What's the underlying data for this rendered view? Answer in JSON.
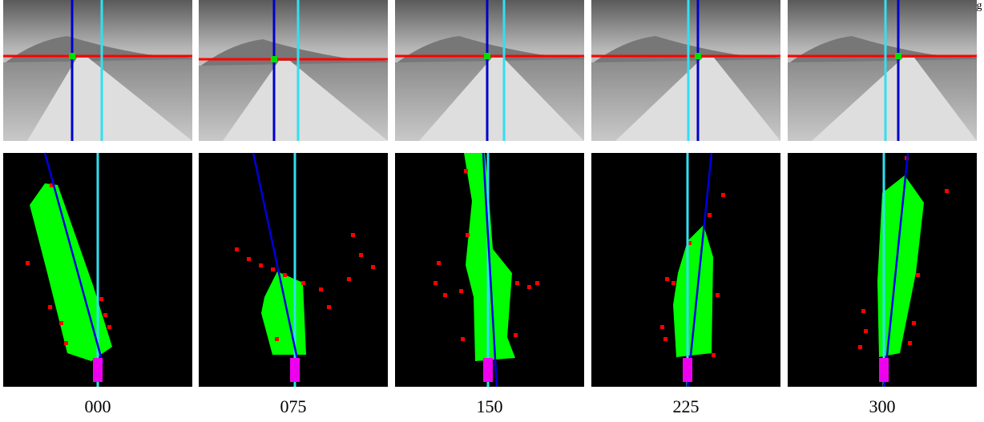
{
  "corner_text": "g",
  "panels": [
    {
      "label": "000"
    },
    {
      "label": "075"
    },
    {
      "label": "150"
    },
    {
      "label": "225"
    },
    {
      "label": "300"
    }
  ]
}
